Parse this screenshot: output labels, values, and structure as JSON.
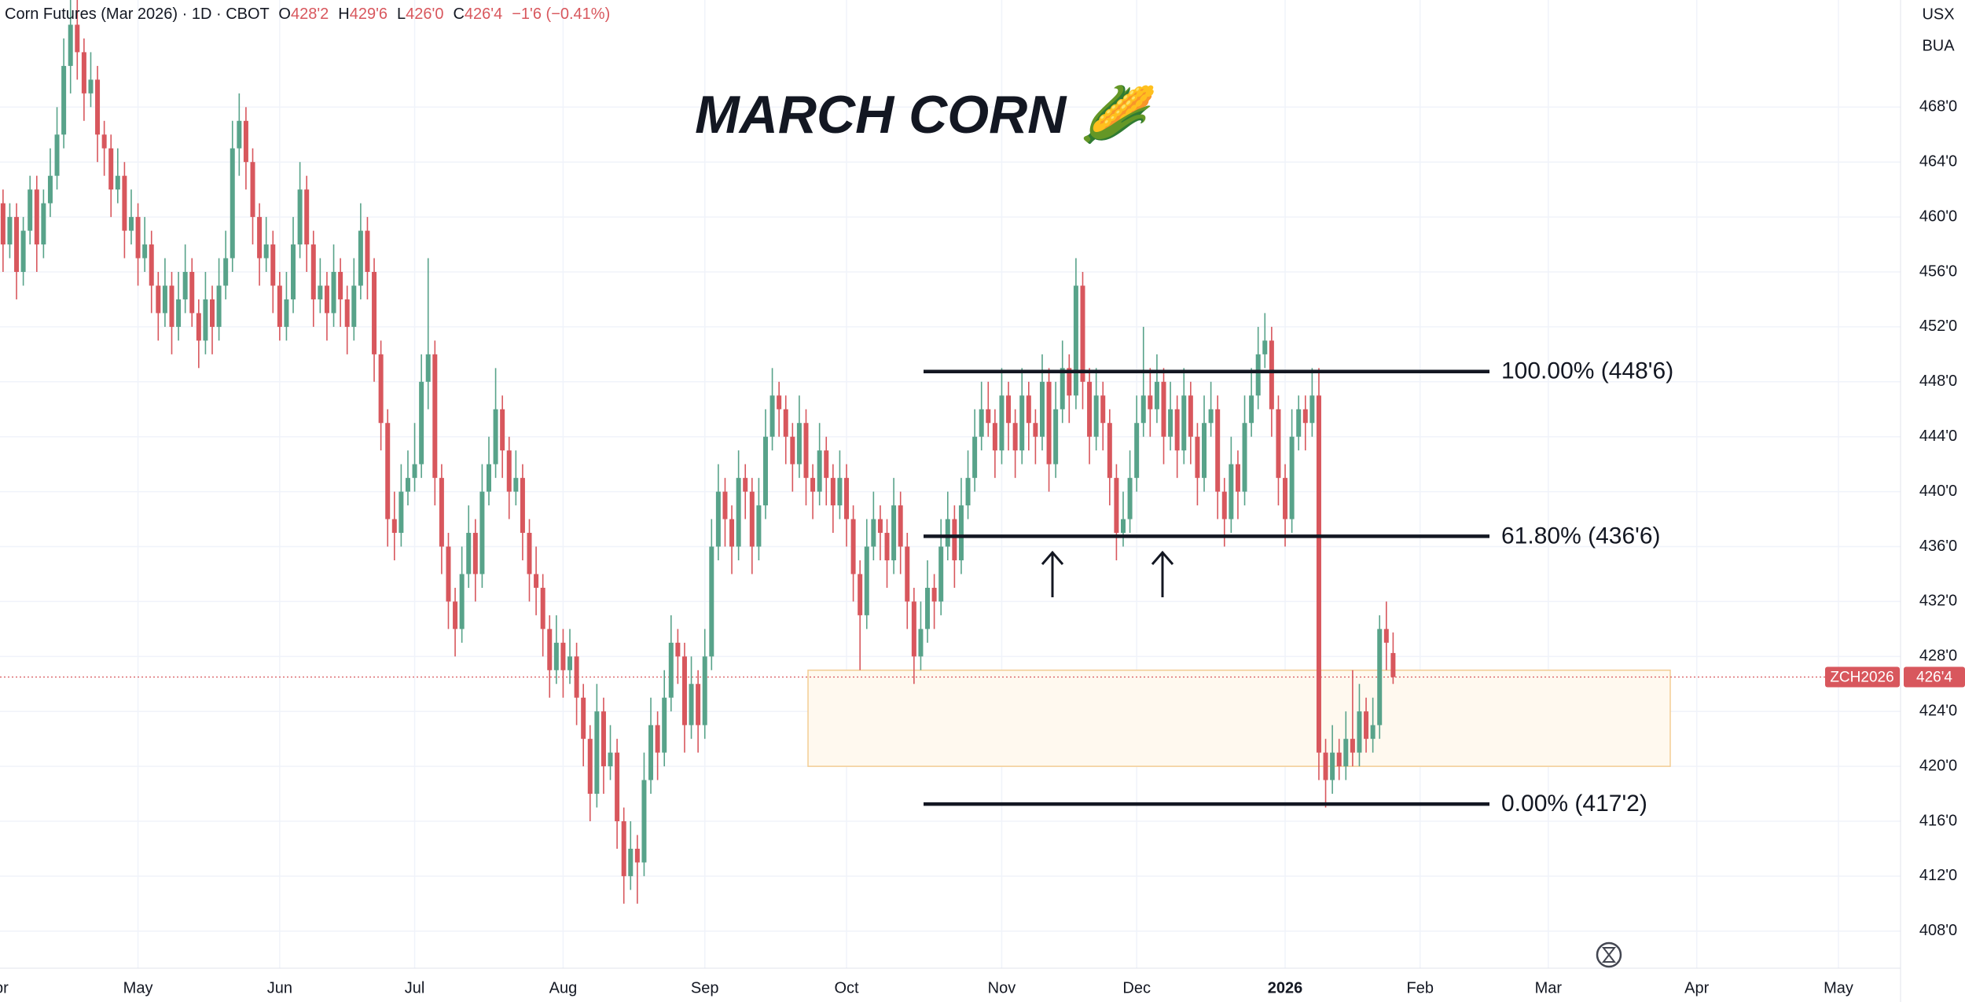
{
  "chart_data": {
    "type": "candlestick",
    "title": "MARCH CORN 🌽",
    "legend_header": {
      "name": "Corn Futures (Mar 2026) · 1D · CBOT",
      "open_key": "O",
      "open": "428'2",
      "high_key": "H",
      "high": "429'6",
      "low_key": "L",
      "low": "426'0",
      "close_key": "C",
      "close": "426'4",
      "change": "−1'6 (−0.41%)"
    },
    "currency": "USX",
    "unit": "BUA",
    "symbol": "ZCH2026",
    "last_price": {
      "value": 426.5,
      "label": "426'4"
    },
    "up_color": "#58a38a",
    "down_color": "#d8575d",
    "grid": true,
    "xlim": [
      0.55,
      282.2
    ],
    "ylim": [
      405.3,
      475.8
    ],
    "xticks": [
      {
        "value": 0,
        "label": "Apr"
      },
      {
        "value": 21,
        "label": "May"
      },
      {
        "value": 42,
        "label": "Jun"
      },
      {
        "value": 62,
        "label": "Jul"
      },
      {
        "value": 84,
        "label": "Aug"
      },
      {
        "value": 105,
        "label": "Sep"
      },
      {
        "value": 126,
        "label": "Oct"
      },
      {
        "value": 149,
        "label": "Nov"
      },
      {
        "value": 169,
        "label": "Dec"
      },
      {
        "value": 191,
        "label": "2026"
      },
      {
        "value": 211,
        "label": "Feb"
      },
      {
        "value": 230,
        "label": "Mar"
      },
      {
        "value": 252,
        "label": "Apr"
      },
      {
        "value": 273,
        "label": "May"
      }
    ],
    "yticks": [
      {
        "value": 408,
        "label": "408'0"
      },
      {
        "value": 412,
        "label": "412'0"
      },
      {
        "value": 416,
        "label": "416'0"
      },
      {
        "value": 420,
        "label": "420'0"
      },
      {
        "value": 424,
        "label": "424'0"
      },
      {
        "value": 428,
        "label": "428'0"
      },
      {
        "value": 432,
        "label": "432'0"
      },
      {
        "value": 436,
        "label": "436'0"
      },
      {
        "value": 440,
        "label": "440'0"
      },
      {
        "value": 444,
        "label": "444'0"
      },
      {
        "value": 448,
        "label": "448'0"
      },
      {
        "value": 452,
        "label": "452'0"
      },
      {
        "value": 456,
        "label": "456'0"
      },
      {
        "value": 460,
        "label": "460'0"
      },
      {
        "value": 464,
        "label": "464'0"
      },
      {
        "value": 468,
        "label": "468'0"
      }
    ],
    "fib_levels": [
      {
        "value": 448.75,
        "label": "100.00% (448'6)"
      },
      {
        "value": 436.75,
        "label": "61.80% (436'6)"
      },
      {
        "value": 417.25,
        "label": "0.00% (417'2)"
      }
    ],
    "zone": {
      "top": 427,
      "bottom": 420
    },
    "candles": [
      [
        463,
        464,
        459,
        461
      ],
      [
        461,
        462,
        456,
        458
      ],
      [
        458,
        461,
        457,
        460
      ],
      [
        460,
        461,
        454,
        456
      ],
      [
        456,
        460,
        455,
        459
      ],
      [
        459,
        463,
        458,
        462
      ],
      [
        462,
        463,
        456,
        458
      ],
      [
        458,
        462,
        457,
        461
      ],
      [
        461,
        465,
        460,
        463
      ],
      [
        463,
        468,
        462,
        466
      ],
      [
        466,
        473,
        465,
        471
      ],
      [
        471,
        476,
        469,
        474
      ],
      [
        474,
        476,
        470,
        472
      ],
      [
        472,
        473,
        467,
        469
      ],
      [
        469,
        472,
        468,
        470
      ],
      [
        470,
        471,
        464,
        466
      ],
      [
        466,
        467,
        463,
        465
      ],
      [
        465,
        466,
        460,
        462
      ],
      [
        462,
        465,
        461,
        463
      ],
      [
        463,
        464,
        457,
        459
      ],
      [
        459,
        462,
        458,
        460
      ],
      [
        460,
        461,
        455,
        457
      ],
      [
        457,
        460,
        456,
        458
      ],
      [
        458,
        459,
        453,
        455
      ],
      [
        455,
        456,
        451,
        453
      ],
      [
        453,
        457,
        452,
        455
      ],
      [
        455,
        456,
        450,
        452
      ],
      [
        452,
        456,
        451,
        454
      ],
      [
        454,
        458,
        453,
        456
      ],
      [
        456,
        457,
        452,
        453
      ],
      [
        453,
        454,
        449,
        451
      ],
      [
        451,
        456,
        450,
        454
      ],
      [
        454,
        455,
        450,
        452
      ],
      [
        452,
        457,
        451,
        455
      ],
      [
        455,
        459,
        454,
        457
      ],
      [
        457,
        467,
        456,
        465
      ],
      [
        465,
        469,
        463,
        467
      ],
      [
        467,
        468,
        462,
        464
      ],
      [
        464,
        465,
        458,
        460
      ],
      [
        460,
        461,
        455,
        457
      ],
      [
        457,
        460,
        456,
        458
      ],
      [
        458,
        459,
        453,
        455
      ],
      [
        455,
        456,
        451,
        452
      ],
      [
        452,
        456,
        451,
        454
      ],
      [
        454,
        460,
        453,
        458
      ],
      [
        458,
        464,
        457,
        462
      ],
      [
        462,
        463,
        456,
        458
      ],
      [
        458,
        459,
        452,
        454
      ],
      [
        454,
        457,
        453,
        455
      ],
      [
        455,
        456,
        451,
        453
      ],
      [
        453,
        458,
        452,
        456
      ],
      [
        456,
        457,
        452,
        454
      ],
      [
        454,
        455,
        450,
        452
      ],
      [
        452,
        457,
        451,
        455
      ],
      [
        455,
        461,
        454,
        459
      ],
      [
        459,
        460,
        454,
        456
      ],
      [
        456,
        457,
        448,
        450
      ],
      [
        450,
        451,
        443,
        445
      ],
      [
        445,
        446,
        436,
        438
      ],
      [
        438,
        440,
        435,
        437
      ],
      [
        437,
        442,
        436,
        440
      ],
      [
        440,
        443,
        439,
        441
      ],
      [
        441,
        445,
        440,
        442
      ],
      [
        442,
        450,
        441,
        448
      ],
      [
        448,
        457,
        446,
        450
      ],
      [
        450,
        451,
        439,
        441
      ],
      [
        441,
        442,
        434,
        436
      ],
      [
        436,
        437,
        430,
        432
      ],
      [
        432,
        433,
        428,
        430
      ],
      [
        430,
        436,
        429,
        434
      ],
      [
        434,
        439,
        433,
        437
      ],
      [
        437,
        438,
        432,
        434
      ],
      [
        434,
        442,
        433,
        440
      ],
      [
        440,
        444,
        439,
        442
      ],
      [
        442,
        449,
        441,
        446
      ],
      [
        446,
        447,
        441,
        443
      ],
      [
        443,
        444,
        438,
        440
      ],
      [
        440,
        443,
        439,
        441
      ],
      [
        441,
        442,
        435,
        437
      ],
      [
        437,
        438,
        432,
        434
      ],
      [
        434,
        436,
        431,
        433
      ],
      [
        433,
        434,
        428,
        430
      ],
      [
        430,
        431,
        425,
        427
      ],
      [
        427,
        431,
        426,
        429
      ],
      [
        429,
        430,
        425,
        427
      ],
      [
        427,
        430,
        426,
        428
      ],
      [
        428,
        429,
        423,
        425
      ],
      [
        425,
        426,
        420,
        422
      ],
      [
        422,
        423,
        416,
        418
      ],
      [
        418,
        426,
        417,
        424
      ],
      [
        424,
        425,
        418,
        420
      ],
      [
        420,
        423,
        419,
        421
      ],
      [
        421,
        422,
        414,
        416
      ],
      [
        416,
        417,
        410,
        412
      ],
      [
        412,
        416,
        411,
        414
      ],
      [
        414,
        415,
        410,
        413
      ],
      [
        413,
        421,
        412,
        419
      ],
      [
        419,
        425,
        418,
        423
      ],
      [
        423,
        424,
        419,
        421
      ],
      [
        421,
        427,
        420,
        425
      ],
      [
        425,
        431,
        424,
        429
      ],
      [
        429,
        430,
        426,
        428
      ],
      [
        428,
        429,
        421,
        423
      ],
      [
        423,
        428,
        422,
        426
      ],
      [
        426,
        427,
        421,
        423
      ],
      [
        423,
        430,
        422,
        428
      ],
      [
        428,
        438,
        427,
        436
      ],
      [
        436,
        442,
        435,
        440
      ],
      [
        440,
        441,
        436,
        438
      ],
      [
        438,
        439,
        434,
        436
      ],
      [
        436,
        443,
        435,
        441
      ],
      [
        441,
        442,
        438,
        440
      ],
      [
        440,
        441,
        434,
        436
      ],
      [
        436,
        441,
        435,
        439
      ],
      [
        439,
        446,
        438,
        444
      ],
      [
        444,
        449,
        443,
        447
      ],
      [
        447,
        448,
        444,
        446
      ],
      [
        446,
        447,
        442,
        444
      ],
      [
        444,
        445,
        440,
        442
      ],
      [
        442,
        447,
        441,
        445
      ],
      [
        445,
        446,
        439,
        441
      ],
      [
        441,
        442,
        438,
        440
      ],
      [
        440,
        445,
        439,
        443
      ],
      [
        443,
        444,
        439,
        441
      ],
      [
        441,
        442,
        437,
        439
      ],
      [
        439,
        443,
        438,
        441
      ],
      [
        441,
        442,
        436,
        438
      ],
      [
        438,
        439,
        432,
        434
      ],
      [
        434,
        435,
        427,
        431
      ],
      [
        431,
        438,
        430,
        436
      ],
      [
        436,
        440,
        435,
        438
      ],
      [
        438,
        439,
        435,
        437
      ],
      [
        437,
        438,
        433,
        435
      ],
      [
        435,
        441,
        434,
        439
      ],
      [
        439,
        440,
        434,
        436
      ],
      [
        436,
        437,
        430,
        432
      ],
      [
        432,
        433,
        426,
        428
      ],
      [
        428,
        432,
        427,
        430
      ],
      [
        430,
        435,
        429,
        433
      ],
      [
        433,
        434,
        430,
        432
      ],
      [
        432,
        438,
        431,
        436
      ],
      [
        436,
        440,
        435,
        438
      ],
      [
        438,
        439,
        433,
        435
      ],
      [
        435,
        441,
        434,
        439
      ],
      [
        439,
        443,
        438,
        441
      ],
      [
        441,
        446,
        440,
        444
      ],
      [
        444,
        448,
        443,
        446
      ],
      [
        446,
        448,
        444,
        445
      ],
      [
        445,
        446,
        441,
        443
      ],
      [
        443,
        449,
        442,
        447
      ],
      [
        447,
        448,
        443,
        445
      ],
      [
        445,
        446,
        441,
        443
      ],
      [
        443,
        449,
        442,
        447
      ],
      [
        447,
        448,
        443,
        445
      ],
      [
        445,
        446,
        442,
        444
      ],
      [
        444,
        450,
        443,
        448
      ],
      [
        448,
        449,
        440,
        442
      ],
      [
        442,
        448,
        441,
        446
      ],
      [
        446,
        451,
        445,
        449
      ],
      [
        449,
        450,
        445,
        447
      ],
      [
        447,
        457,
        446,
        455
      ],
      [
        455,
        456,
        446,
        448
      ],
      [
        448,
        449,
        442,
        444
      ],
      [
        444,
        449,
        443,
        447
      ],
      [
        447,
        448,
        443,
        445
      ],
      [
        445,
        446,
        439,
        441
      ],
      [
        441,
        442,
        435,
        437
      ],
      [
        437,
        440,
        436,
        438
      ],
      [
        438,
        443,
        437,
        441
      ],
      [
        441,
        447,
        440,
        445
      ],
      [
        445,
        452,
        444,
        447
      ],
      [
        447,
        449,
        444,
        446
      ],
      [
        446,
        450,
        445,
        448
      ],
      [
        448,
        449,
        442,
        444
      ],
      [
        444,
        448,
        443,
        446
      ],
      [
        446,
        447,
        441,
        443
      ],
      [
        443,
        449,
        442,
        447
      ],
      [
        447,
        448,
        442,
        444
      ],
      [
        444,
        445,
        439,
        441
      ],
      [
        441,
        447,
        440,
        445
      ],
      [
        445,
        448,
        444,
        446
      ],
      [
        446,
        447,
        438,
        440
      ],
      [
        440,
        441,
        436,
        438
      ],
      [
        438,
        444,
        437,
        442
      ],
      [
        442,
        443,
        438,
        440
      ],
      [
        440,
        447,
        439,
        445
      ],
      [
        445,
        449,
        444,
        447
      ],
      [
        447,
        452,
        446,
        450
      ],
      [
        450,
        453,
        449,
        451
      ],
      [
        451,
        452,
        444,
        446
      ],
      [
        446,
        447,
        439,
        441
      ],
      [
        441,
        442,
        436,
        438
      ],
      [
        438,
        446,
        437,
        444
      ],
      [
        444,
        447,
        443,
        446
      ],
      [
        446,
        447,
        443,
        445
      ],
      [
        445,
        449,
        444,
        447
      ],
      [
        447,
        449,
        419,
        421
      ],
      [
        421,
        422,
        417,
        419
      ],
      [
        419,
        423,
        418,
        421
      ],
      [
        421,
        422,
        419,
        420
      ],
      [
        420,
        424,
        419,
        422
      ],
      [
        422,
        427,
        420,
        421
      ],
      [
        421,
        426,
        420,
        424
      ],
      [
        424,
        425,
        421,
        422
      ],
      [
        422,
        425,
        421,
        423
      ],
      [
        423,
        431,
        422,
        430
      ],
      [
        430,
        432,
        427,
        429
      ],
      [
        428.25,
        429.75,
        426,
        426.5
      ]
    ]
  }
}
